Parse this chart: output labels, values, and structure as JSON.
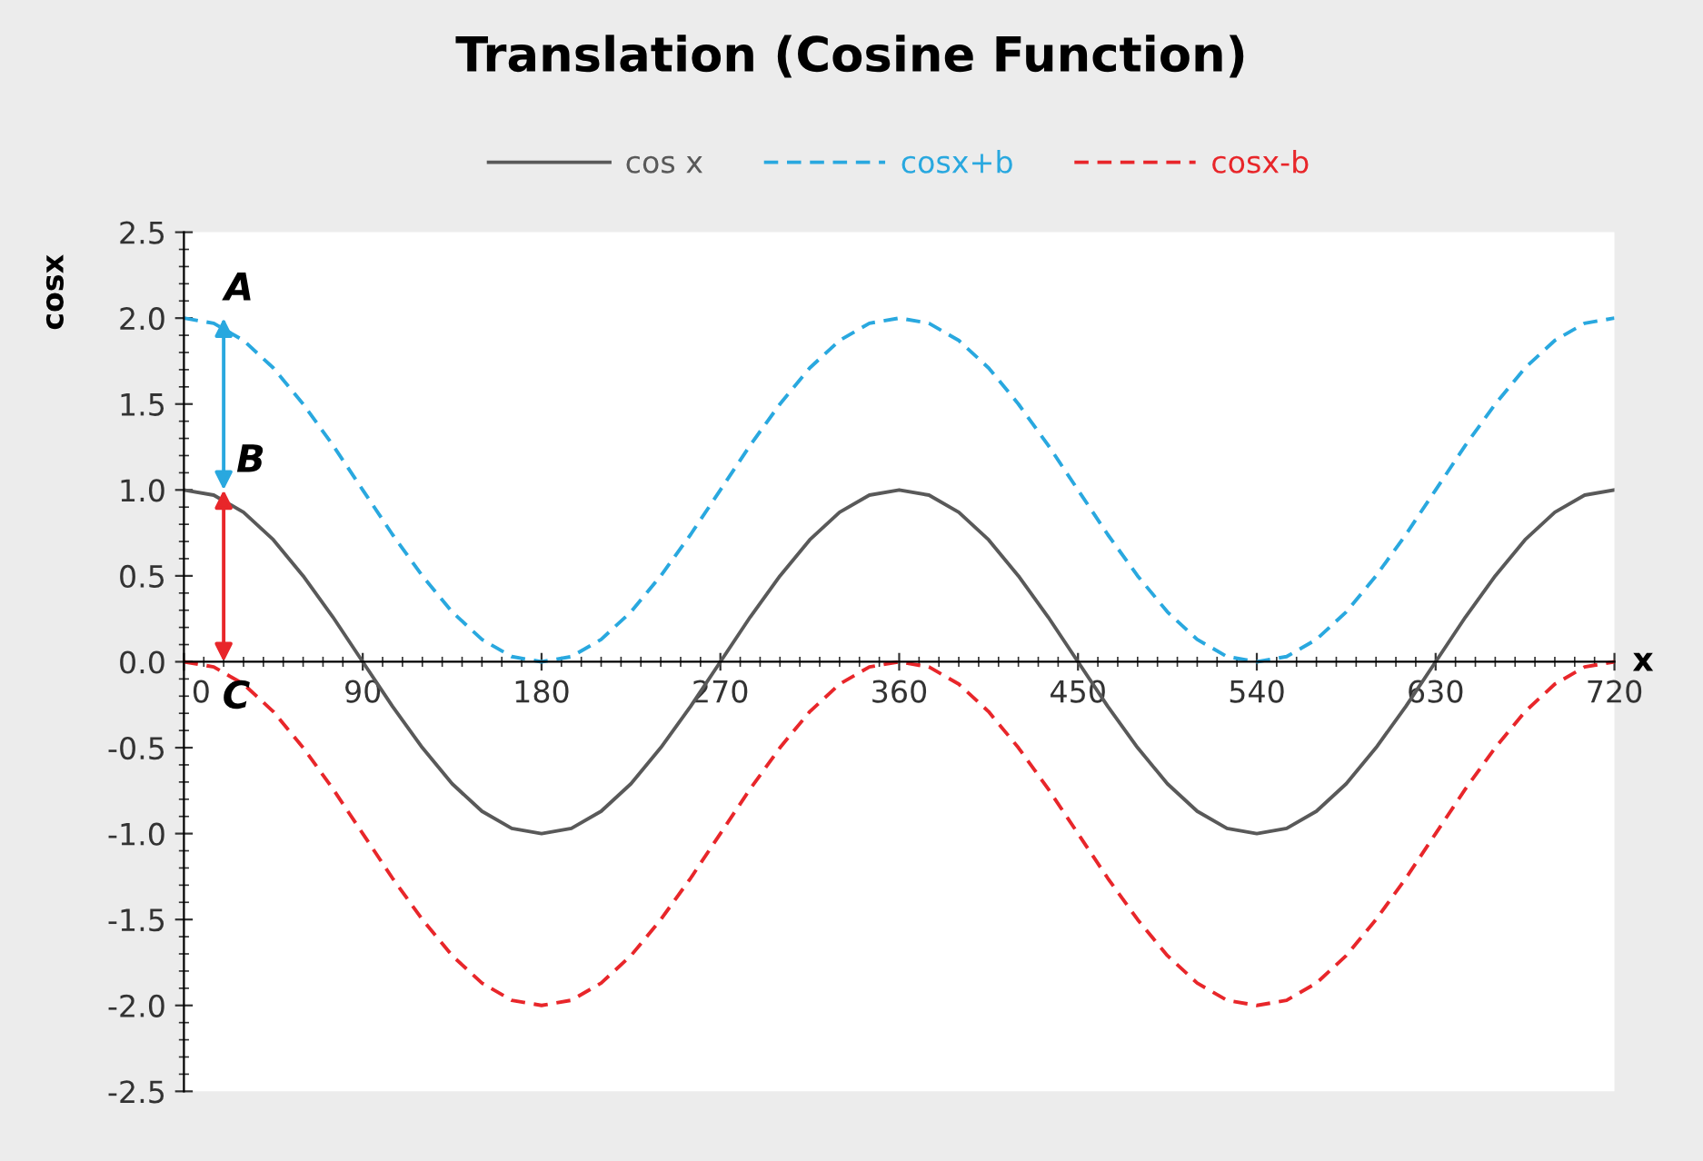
{
  "chart_data": {
    "type": "line",
    "title": "Translation (Cosine Function)",
    "xlabel": "x",
    "ylabel": "cosx",
    "x": [
      0,
      15,
      30,
      45,
      60,
      75,
      90,
      105,
      120,
      135,
      150,
      165,
      180,
      195,
      210,
      225,
      240,
      255,
      270,
      285,
      300,
      315,
      330,
      345,
      360,
      375,
      390,
      405,
      420,
      435,
      450,
      465,
      480,
      495,
      510,
      525,
      540,
      555,
      570,
      585,
      600,
      615,
      630,
      645,
      660,
      675,
      690,
      705,
      720
    ],
    "series": [
      {
        "name": "cos x",
        "color": "#595959",
        "line_style": "solid",
        "values": [
          1,
          0.97,
          0.87,
          0.71,
          0.5,
          0.26,
          0,
          -0.26,
          -0.5,
          -0.71,
          -0.87,
          -0.97,
          -1,
          -0.97,
          -0.87,
          -0.71,
          -0.5,
          -0.26,
          0,
          0.26,
          0.5,
          0.71,
          0.87,
          0.97,
          1,
          0.97,
          0.87,
          0.71,
          0.5,
          0.26,
          0,
          -0.26,
          -0.5,
          -0.71,
          -0.87,
          -0.97,
          -1,
          -0.97,
          -0.87,
          -0.71,
          -0.5,
          -0.26,
          0,
          0.26,
          0.5,
          0.71,
          0.87,
          0.97,
          1
        ]
      },
      {
        "name": "cosx+b",
        "color": "#29a8df",
        "line_style": "dashed",
        "values": [
          2,
          1.97,
          1.87,
          1.71,
          1.5,
          1.26,
          1,
          0.74,
          0.5,
          0.29,
          0.13,
          0.03,
          0,
          0.03,
          0.13,
          0.29,
          0.5,
          0.74,
          1,
          1.26,
          1.5,
          1.71,
          1.87,
          1.97,
          2,
          1.97,
          1.87,
          1.71,
          1.5,
          1.26,
          1,
          0.74,
          0.5,
          0.29,
          0.13,
          0.03,
          0,
          0.03,
          0.13,
          0.29,
          0.5,
          0.74,
          1,
          1.26,
          1.5,
          1.71,
          1.87,
          1.97,
          2
        ]
      },
      {
        "name": "cosx-b",
        "color": "#e8262a",
        "line_style": "dashed",
        "values": [
          0,
          -0.03,
          -0.13,
          -0.29,
          -0.5,
          -0.74,
          -1,
          -1.26,
          -1.5,
          -1.71,
          -1.87,
          -1.97,
          -2,
          -1.97,
          -1.87,
          -1.71,
          -1.5,
          -1.26,
          -1,
          -0.74,
          -0.5,
          -0.29,
          -0.13,
          -0.03,
          0,
          -0.03,
          -0.13,
          -0.29,
          -0.5,
          -0.74,
          -1,
          -1.26,
          -1.5,
          -1.71,
          -1.87,
          -1.97,
          -2,
          -1.97,
          -1.87,
          -1.71,
          -1.5,
          -1.26,
          -1,
          -0.74,
          -0.5,
          -0.29,
          -0.13,
          -0.03,
          0
        ]
      }
    ],
    "xlim": [
      0,
      720
    ],
    "xticks": [
      0,
      90,
      180,
      270,
      360,
      450,
      540,
      630,
      720
    ],
    "ylim": [
      -2.5,
      2.5
    ],
    "yticks": [
      {
        "value": -2.5,
        "label": "-2.5"
      },
      {
        "value": -2,
        "label": "-2.0"
      },
      {
        "value": -1.5,
        "label": "-1.5"
      },
      {
        "value": -1,
        "label": "-1.0"
      },
      {
        "value": -0.5,
        "label": "-0.5"
      },
      {
        "value": 0,
        "label": "0.0"
      },
      {
        "value": 0.5,
        "label": "0.5"
      },
      {
        "value": 1,
        "label": "1.0"
      },
      {
        "value": 1.5,
        "label": "1.5"
      },
      {
        "value": 2,
        "label": "2.0"
      },
      {
        "value": 2.5,
        "label": "2.5"
      }
    ],
    "annotations": [
      {
        "text": "A",
        "x": 14,
        "y": 2.0
      },
      {
        "text": "B",
        "x": 20,
        "y": 1.0
      },
      {
        "text": "C",
        "x": 13,
        "y": 0
      }
    ],
    "grid": false,
    "legend": "top",
    "marker": "none"
  }
}
